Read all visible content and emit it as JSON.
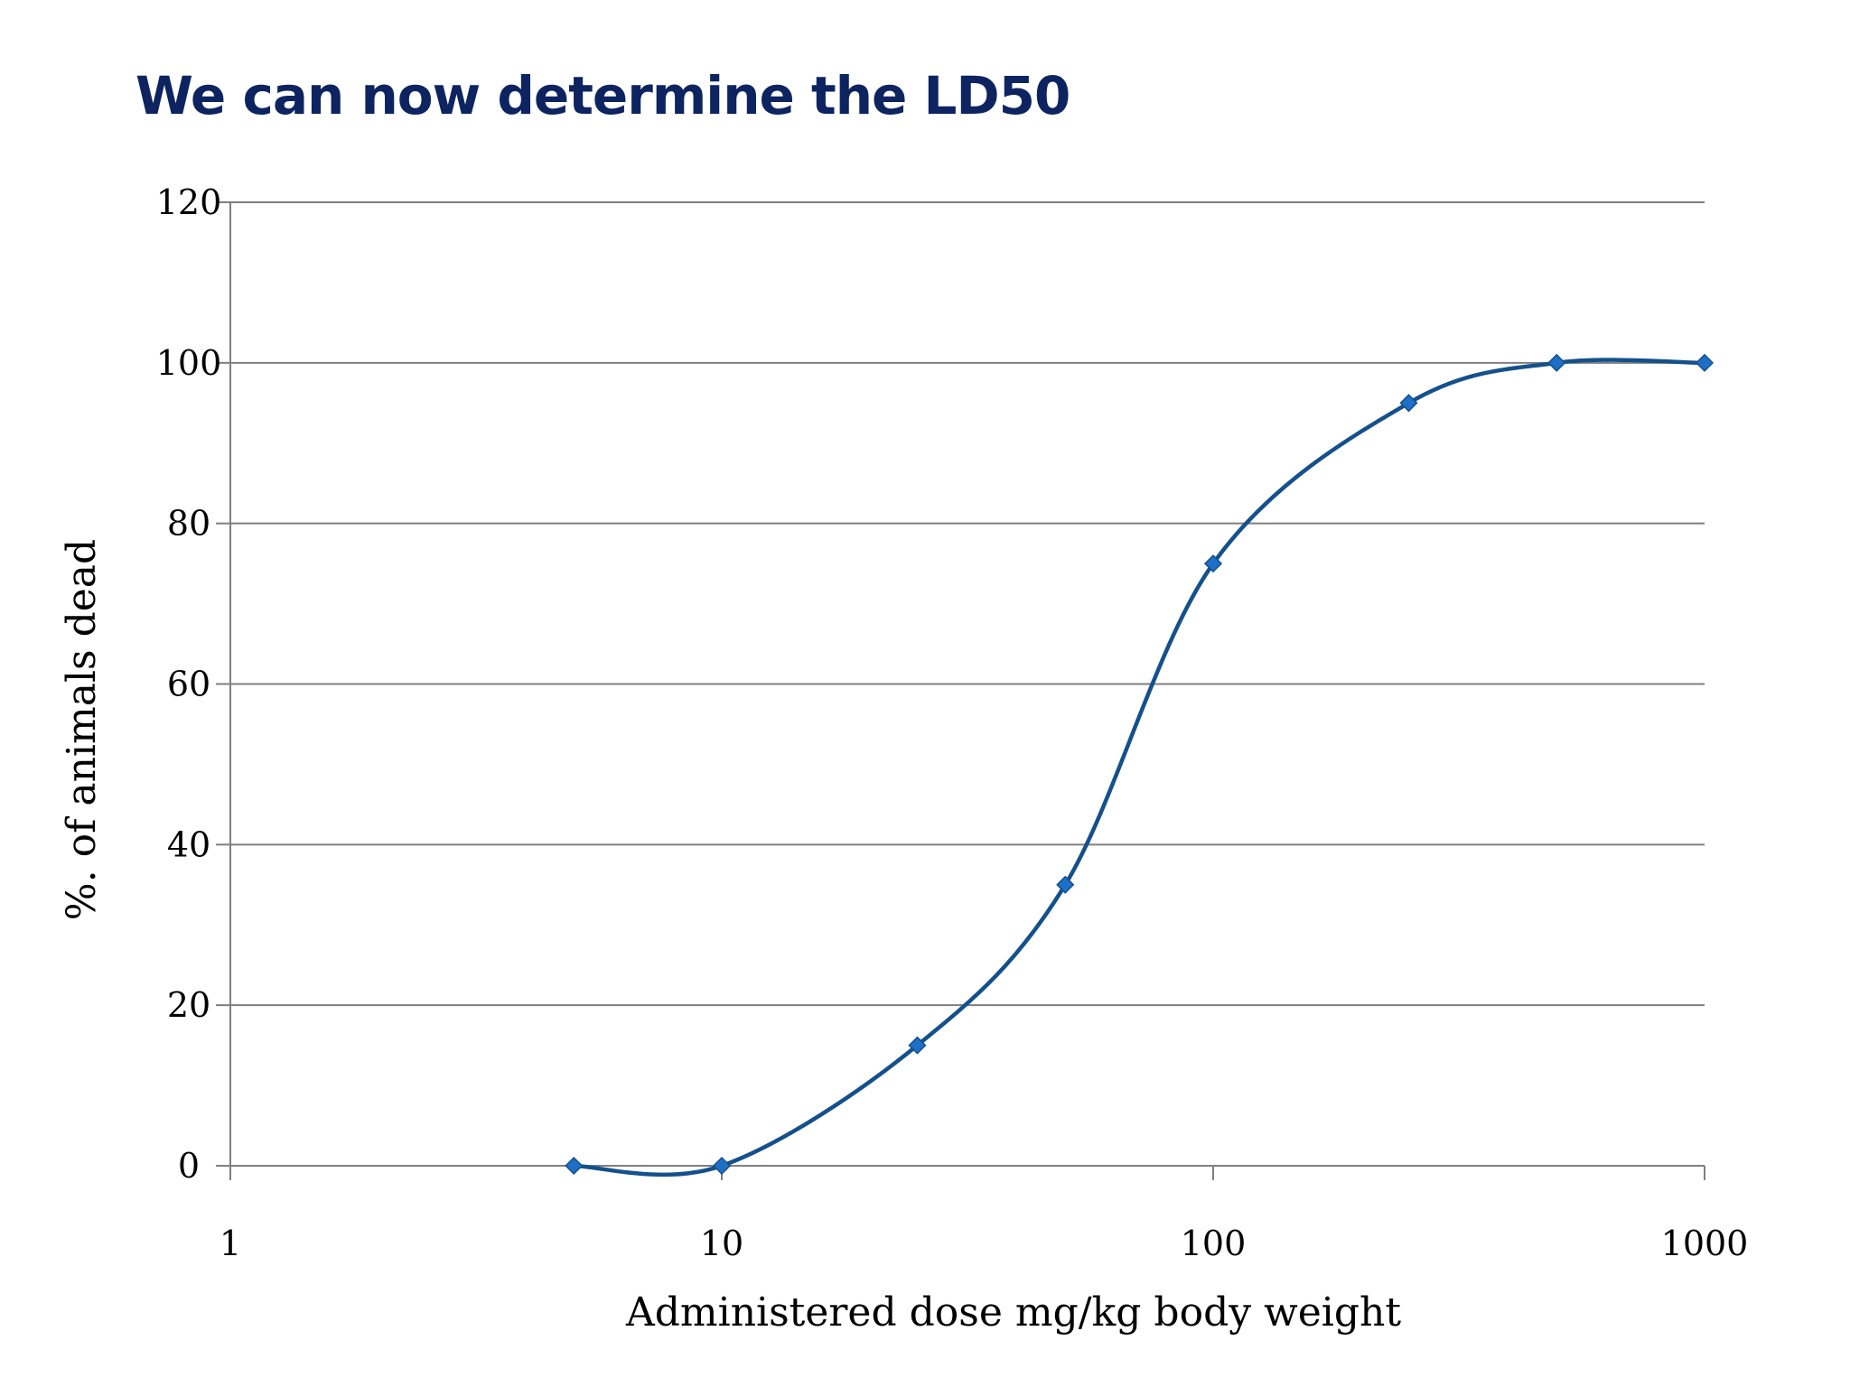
{
  "title": "We can now determine the LD50",
  "colors": {
    "title": "#0d2461",
    "series": "#14508c",
    "marker": "#1f6fc6",
    "grid": "#7f7f7f",
    "axis": "#7f7f7f"
  },
  "chart_data": {
    "type": "line",
    "title": "",
    "xlabel": "Administered dose mg/kg body weight",
    "ylabel": "%. of animals dead",
    "xscale": "log",
    "xlim": [
      1,
      1000
    ],
    "ylim": [
      0,
      120
    ],
    "xticks": [
      1,
      10,
      100,
      1000
    ],
    "xtick_labels": [
      "1",
      "10",
      "100",
      "1000"
    ],
    "yticks": [
      0,
      20,
      40,
      60,
      80,
      100,
      120
    ],
    "ytick_labels": [
      "0",
      "20",
      "40",
      "60",
      "80",
      "100",
      "120"
    ],
    "grid": "horizontal",
    "legend": "none",
    "marker": "diamond",
    "smooth": true,
    "series": [
      {
        "name": "",
        "x": [
          5,
          10,
          25,
          50,
          100,
          250,
          500,
          1000
        ],
        "y": [
          0,
          0,
          15,
          35,
          75,
          95,
          100,
          100
        ]
      }
    ]
  }
}
